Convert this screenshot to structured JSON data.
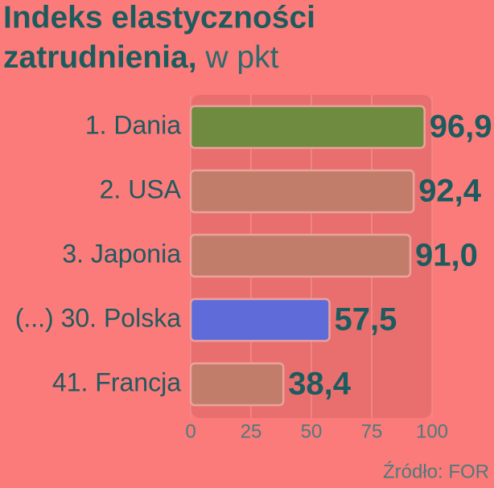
{
  "chart_data": {
    "type": "bar",
    "title": [
      "Indeks elastyczności",
      "zatrudnienia,"
    ],
    "subtitle": "w pkt",
    "categories": [
      "1. Dania",
      "2. USA",
      "3. Japonia",
      "(...) 30. Polska",
      "41. Francja"
    ],
    "values": [
      96.9,
      92.4,
      91.0,
      57.5,
      38.4
    ],
    "value_labels": [
      "96,9",
      "92,4",
      "91,0",
      "57,5",
      "38,4"
    ],
    "colors": [
      "#6f8b3f",
      "#c27d6a",
      "#c27d6a",
      "#5f6bd8",
      "#c27d6a"
    ],
    "xlim": [
      0,
      100
    ],
    "xticks": [
      0,
      25,
      50,
      75,
      100
    ],
    "grid": true,
    "source": "Źródło: FOR"
  }
}
